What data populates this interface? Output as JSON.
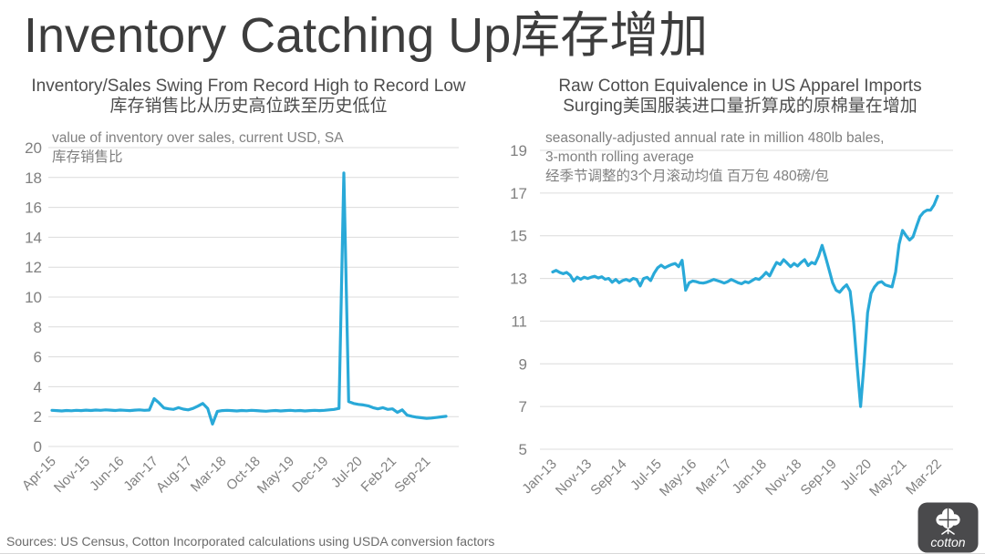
{
  "page": {
    "title": "Inventory Catching Up库存增加",
    "sources": "Sources: US Census, Cotton Incorporated calculations using USDA conversion factors",
    "logo_text": "cotton"
  },
  "colors": {
    "line": "#29a9d8",
    "grid": "#dcdcdc",
    "axis_text": "#808080",
    "title_text": "#3d3d3d",
    "subtitle_text": "#4d4d4d",
    "note_text": "#808080",
    "logo_bg": "#4a4a4c"
  },
  "chart_data": [
    {
      "id": "left",
      "type": "line",
      "title_en": "Inventory/Sales Swing From Record High to Record Low",
      "title_zh": "库存销售比从历史高位跌至历史低位",
      "note_lines": [
        "value of inventory over sales, current USD, SA",
        "库存销售比"
      ],
      "frequency": "monthly",
      "x_start": "Apr-15",
      "x_end": "Jan-22",
      "ylim": [
        0,
        20
      ],
      "y_ticks": [
        0,
        2,
        4,
        6,
        8,
        10,
        12,
        14,
        16,
        18,
        20
      ],
      "x_tick_labels": [
        "Apr-15",
        "Nov-15",
        "Jun-16",
        "Jan-17",
        "Aug-17",
        "Mar-18",
        "Oct-18",
        "May-19",
        "Dec-19",
        "Jul-20",
        "Feb-21",
        "Sep-21"
      ],
      "x_tick_indices": [
        0,
        7,
        14,
        21,
        28,
        35,
        42,
        49,
        56,
        63,
        70,
        77
      ],
      "grid": true,
      "legend": "none",
      "values": [
        2.42,
        2.4,
        2.38,
        2.41,
        2.39,
        2.42,
        2.4,
        2.43,
        2.41,
        2.44,
        2.42,
        2.45,
        2.43,
        2.41,
        2.44,
        2.42,
        2.4,
        2.43,
        2.45,
        2.42,
        2.44,
        3.2,
        2.92,
        2.58,
        2.52,
        2.48,
        2.6,
        2.5,
        2.45,
        2.55,
        2.7,
        2.88,
        2.55,
        1.5,
        2.35,
        2.4,
        2.42,
        2.4,
        2.38,
        2.41,
        2.39,
        2.42,
        2.4,
        2.38,
        2.36,
        2.39,
        2.41,
        2.38,
        2.4,
        2.42,
        2.39,
        2.41,
        2.38,
        2.4,
        2.42,
        2.4,
        2.42,
        2.45,
        2.48,
        2.55,
        18.3,
        3.0,
        2.88,
        2.82,
        2.78,
        2.72,
        2.6,
        2.52,
        2.6,
        2.48,
        2.52,
        2.28,
        2.45,
        2.1,
        2.02,
        1.96,
        1.92,
        1.88,
        1.9,
        1.94,
        1.98,
        2.02
      ]
    },
    {
      "id": "right",
      "type": "line",
      "title_en": "Raw Cotton Equivalence in US Apparel Imports",
      "title_zh": "Surging美国服装进口量折算成的原棉量在增加",
      "note_lines": [
        "seasonally-adjusted annual rate in million 480lb bales,",
        "3-month rolling average",
        "经季节调整的3个月滚动均值 百万包 480磅/包"
      ],
      "frequency": "monthly",
      "x_start": "Jan-13",
      "x_end": "Mar-22",
      "ylim": [
        5,
        19
      ],
      "y_ticks": [
        5,
        7,
        9,
        11,
        13,
        15,
        17,
        19
      ],
      "x_tick_labels": [
        "Jan-13",
        "Nov-13",
        "Sep-14",
        "Jul-15",
        "May-16",
        "Mar-17",
        "Jan-18",
        "Nov-18",
        "Sep-19",
        "Jul-20",
        "May-21",
        "Mar-22"
      ],
      "x_tick_indices": [
        0,
        10,
        20,
        30,
        40,
        50,
        60,
        70,
        80,
        90,
        100,
        110
      ],
      "grid": true,
      "legend": "none",
      "values": [
        13.3,
        13.38,
        13.28,
        13.22,
        13.28,
        13.15,
        12.88,
        13.06,
        12.96,
        13.06,
        13.0,
        13.06,
        13.1,
        13.02,
        13.08,
        12.96,
        13.0,
        12.82,
        12.95,
        12.8,
        12.9,
        12.95,
        12.88,
        13.0,
        12.95,
        12.65,
        13.0,
        13.05,
        12.9,
        13.25,
        13.5,
        13.62,
        13.5,
        13.58,
        13.65,
        13.7,
        13.55,
        13.85,
        12.45,
        12.8,
        12.88,
        12.85,
        12.8,
        12.78,
        12.82,
        12.88,
        12.95,
        12.9,
        12.85,
        12.78,
        12.85,
        12.95,
        12.88,
        12.8,
        12.75,
        12.85,
        12.8,
        12.9,
        13.0,
        12.95,
        13.1,
        13.28,
        13.12,
        13.45,
        13.75,
        13.65,
        13.88,
        13.72,
        13.55,
        13.7,
        13.58,
        13.75,
        13.88,
        13.6,
        13.75,
        13.68,
        14.05,
        14.55,
        14.0,
        13.4,
        12.8,
        12.45,
        12.35,
        12.55,
        12.7,
        12.4,
        11.0,
        8.9,
        7.0,
        9.0,
        11.4,
        12.3,
        12.6,
        12.8,
        12.85,
        12.7,
        12.65,
        12.6,
        13.3,
        14.6,
        15.25,
        15.0,
        14.8,
        14.95,
        15.45,
        15.9,
        16.1,
        16.2,
        16.2,
        16.45,
        16.85
      ]
    }
  ]
}
